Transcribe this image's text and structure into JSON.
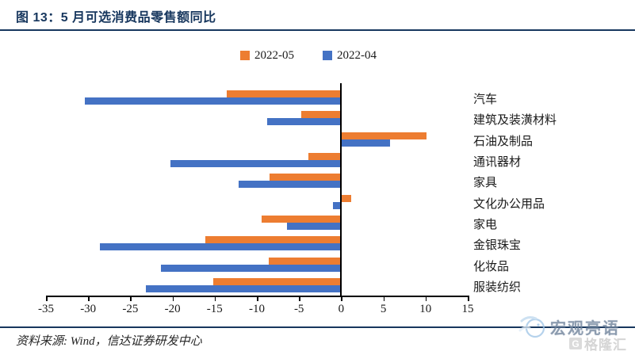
{
  "title": "图 13：5 月可选消费品零售额同比",
  "source_note": "资料来源: Wind，信达证券研发中心",
  "watermark": {
    "brand": "宏观亮语",
    "sub_brand": "格隆汇",
    "icon": "bird-circle-icon"
  },
  "colors": {
    "accent_navy": "#17375E",
    "series_orange": "#ED7D31",
    "series_blue": "#4472C4",
    "axis_black": "#000000"
  },
  "chart_data": {
    "type": "bar",
    "orientation": "horizontal",
    "title": "5 月可选消费品零售额同比",
    "categories": [
      "汽车",
      "建筑及装潢材料",
      "石油及制品",
      "通讯器材",
      "家具",
      "文化办公用品",
      "家电",
      "金银珠宝",
      "化妆品",
      "服装纺织"
    ],
    "series": [
      {
        "name": "2022-05",
        "color": "#ED7D31",
        "values": [
          -13.6,
          -4.7,
          10.1,
          -3.9,
          -8.5,
          1.2,
          -9.4,
          -16.1,
          -8.6,
          -15.2
        ]
      },
      {
        "name": "2022-04",
        "color": "#4472C4",
        "values": [
          -30.4,
          -8.8,
          5.8,
          -20.2,
          -12.2,
          -1.0,
          -6.4,
          -28.6,
          -21.4,
          -23.2
        ]
      }
    ],
    "xlim": [
      -35,
      15
    ],
    "xticks": [
      -35,
      -30,
      -25,
      -20,
      -15,
      -10,
      -5,
      0,
      5,
      10,
      15
    ],
    "grid": false,
    "legend_position": "top-center",
    "unit": "%"
  }
}
